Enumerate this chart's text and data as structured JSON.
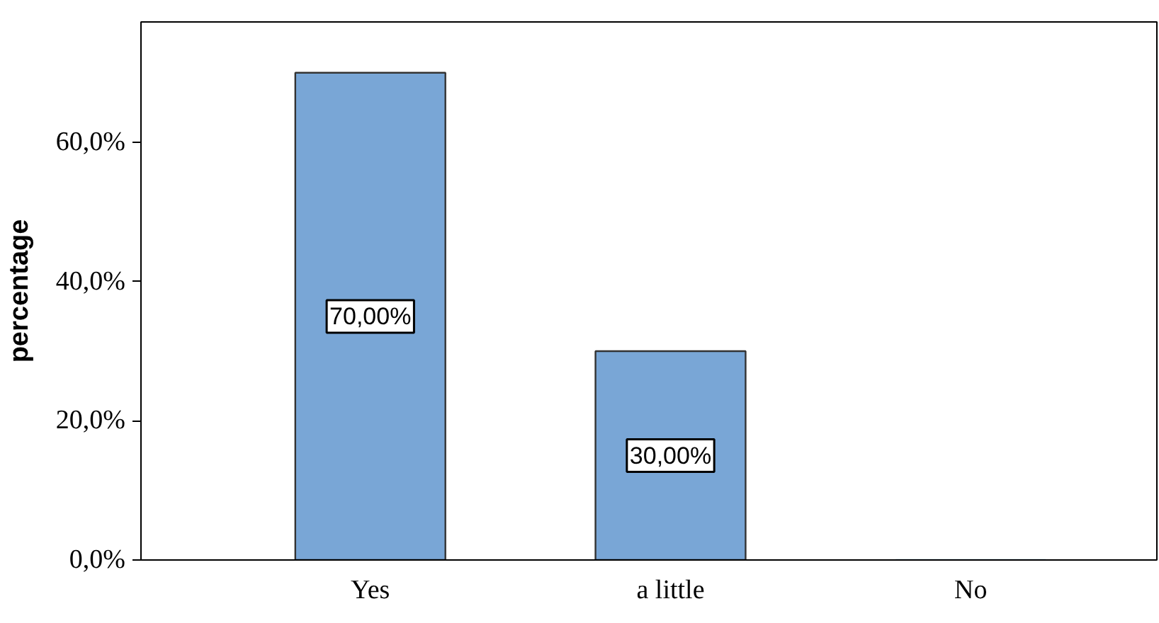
{
  "chart_data": {
    "type": "bar",
    "ylabel": "percentage",
    "categories": [
      "Yes",
      "a little",
      "No"
    ],
    "values": [
      70,
      30,
      0
    ],
    "color": "#79a6d6",
    "value_labels": [
      "70,00%",
      "30,00%",
      null
    ],
    "ylim": [
      0,
      77.3
    ],
    "yticks": [
      {
        "value": 0,
        "label": "0,0%"
      },
      {
        "value": 20,
        "label": "20,0%"
      },
      {
        "value": 40,
        "label": "40,0%"
      },
      {
        "value": 60,
        "label": "60,0%"
      }
    ],
    "grid": false
  }
}
